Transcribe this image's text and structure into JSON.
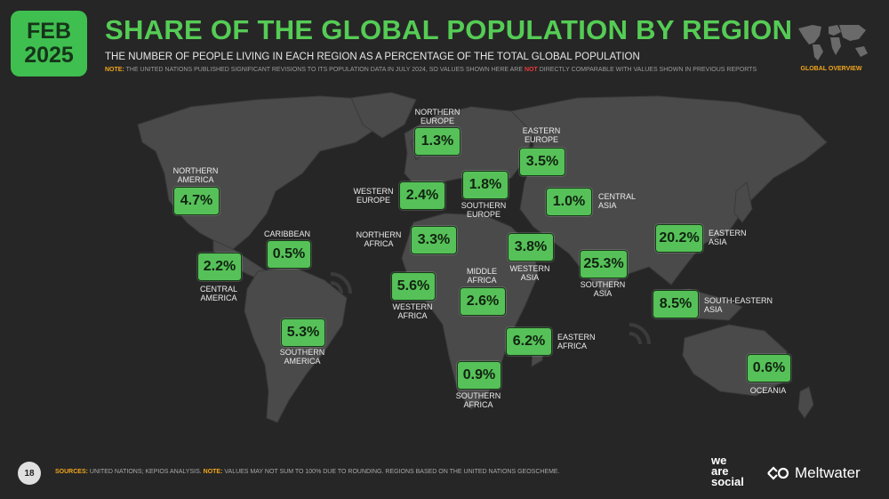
{
  "header": {
    "date_month": "FEB",
    "date_year": "2025",
    "title": "SHARE OF THE GLOBAL POPULATION BY REGION",
    "subtitle": "THE NUMBER OF PEOPLE LIVING IN EACH REGION AS A PERCENTAGE OF THE TOTAL GLOBAL POPULATION",
    "note_key": "NOTE:",
    "note_text_1": "THE UNITED NATIONS PUBLISHED SIGNIFICANT REVISIONS TO ITS POPULATION DATA IN JULY 2024, SO VALUES SHOWN HERE ARE",
    "note_not": "NOT",
    "note_text_2": "DIRECTLY COMPARABLE WITH VALUES SHOWN IN PREVIOUS REPORTS",
    "overview_label": "GLOBAL OVERVIEW"
  },
  "regions": {
    "northern_america": {
      "label_1": "NORTHERN",
      "label_2": "AMERICA",
      "value": "4.7%"
    },
    "central_america": {
      "label_1": "CENTRAL",
      "label_2": "AMERICA",
      "value": "2.2%"
    },
    "caribbean": {
      "label_1": "CARIBBEAN",
      "value": "0.5%"
    },
    "southern_america": {
      "label_1": "SOUTHERN",
      "label_2": "AMERICA",
      "value": "5.3%"
    },
    "northern_europe": {
      "label_1": "NORTHERN",
      "label_2": "EUROPE",
      "value": "1.3%"
    },
    "western_europe": {
      "label_1": "WESTERN",
      "label_2": "EUROPE",
      "value": "2.4%"
    },
    "southern_europe": {
      "label_1": "SOUTHERN",
      "label_2": "EUROPE",
      "value": "1.8%"
    },
    "eastern_europe": {
      "label_1": "EASTERN",
      "label_2": "EUROPE",
      "value": "3.5%"
    },
    "central_asia": {
      "label_1": "CENTRAL",
      "label_2": "ASIA",
      "value": "1.0%"
    },
    "northern_africa": {
      "label_1": "NORTHERN",
      "label_2": "AFRICA",
      "value": "3.3%"
    },
    "western_asia": {
      "label_1": "WESTERN",
      "label_2": "ASIA",
      "value": "3.8%"
    },
    "southern_asia": {
      "label_1": "SOUTHERN",
      "label_2": "ASIA",
      "value": "25.3%"
    },
    "eastern_asia": {
      "label_1": "EASTERN",
      "label_2": "ASIA",
      "value": "20.2%"
    },
    "south_eastern_asia": {
      "label_1": "SOUTH-EASTERN",
      "label_2": "ASIA",
      "value": "8.5%"
    },
    "western_africa": {
      "label_1": "WESTERN",
      "label_2": "AFRICA",
      "value": "5.6%"
    },
    "middle_africa": {
      "label_1": "MIDDLE",
      "label_2": "AFRICA",
      "value": "2.6%"
    },
    "eastern_africa": {
      "label_1": "EASTERN",
      "label_2": "AFRICA",
      "value": "6.2%"
    },
    "southern_africa": {
      "label_1": "SOUTHERN",
      "label_2": "AFRICA",
      "value": "0.9%"
    },
    "oceania": {
      "label_1": "OCEANIA",
      "value": "0.6%"
    }
  },
  "footer": {
    "page_number": "18",
    "sources_key": "SOURCES:",
    "sources_text": "UNITED NATIONS; KEPIOS ANALYSIS.",
    "note_key": "NOTE:",
    "note_text": "VALUES MAY NOT SUM TO 100% DUE TO ROUNDING. REGIONS BASED ON THE UNITED NATIONS GEOSCHEME.",
    "brand_1_line_1": "we",
    "brand_1_line_2": "are",
    "brand_1_line_3": "social",
    "brand_2": "Meltwater"
  },
  "colors": {
    "accent_green": "#55cc55",
    "badge_green": "#56c158",
    "land": "#4a4a4a",
    "background": "#262626",
    "note_orange": "#f2a61c",
    "note_red": "#e83a3a"
  }
}
